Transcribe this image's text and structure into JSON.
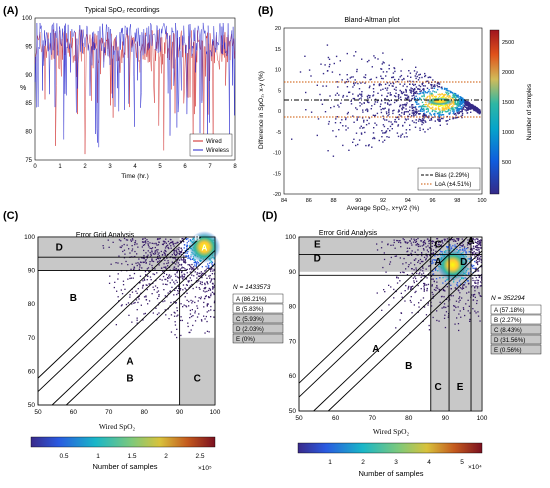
{
  "chart_data": [
    {
      "panel_label": "(A)",
      "type": "line",
      "title": "Typical SpO₂ recordings",
      "xlabel": "Time (hr.)",
      "ylabel": "%",
      "xlim": [
        0,
        8
      ],
      "ylim": [
        75,
        100
      ],
      "xticks": [
        "0",
        "1",
        "2",
        "3",
        "4",
        "5",
        "6",
        "7",
        "8"
      ],
      "yticks": [
        "75",
        "80",
        "85",
        "90",
        "95",
        "100"
      ],
      "legend_position": "bottom-right",
      "series": [
        {
          "name": "Wired",
          "color": "#cc2222"
        },
        {
          "name": "Wireless",
          "color": "#2222cc"
        }
      ]
    },
    {
      "panel_label": "(B)",
      "type": "scatter",
      "title": "Bland-Altman plot",
      "xlabel": "Average SpO₂, x+y/2 (%)",
      "ylabel": "Difference in SpO₂, x-y (%)",
      "xlim": [
        84,
        100
      ],
      "ylim": [
        -20,
        20
      ],
      "xticks": [
        "84",
        "86",
        "88",
        "90",
        "92",
        "94",
        "96",
        "98",
        "100"
      ],
      "yticks": [
        "-20",
        "-15",
        "-10",
        "-5",
        "0",
        "5",
        "10",
        "15",
        "20"
      ],
      "colorbar_label": "Number of samples",
      "colorbar_ticks": [
        "500",
        "1000",
        "1500",
        "2000",
        "2500"
      ],
      "legend_position": "bottom-right",
      "lines": [
        {
          "name": "Bias (2.29%)",
          "value": 2.29
        },
        {
          "name": "LoA (±4.51%)",
          "values": [
            -2.22,
            6.8
          ]
        }
      ]
    },
    {
      "panel_label": "(C)",
      "type": "scatter",
      "title": "Error Grid Analysis",
      "xlabel": "Wired SpO₂",
      "xlim": [
        50,
        100
      ],
      "ylim": [
        50,
        100
      ],
      "xticks": [
        "50",
        "60",
        "70",
        "80",
        "90",
        "100"
      ],
      "yticks": [
        "50",
        "60",
        "70",
        "80",
        "90",
        "100"
      ],
      "n_label": "N = 1433573",
      "zones": [
        "A (86.21%)",
        "B (5.83%)",
        "C (5.93%)",
        "D (2.03%)",
        "E (0%)"
      ],
      "zone_labels": [
        "A",
        "B",
        "C",
        "D"
      ],
      "colorbar_label": "Number of samples",
      "colorbar_ticks": [
        "0.5",
        "1",
        "1.5",
        "2",
        "2.5"
      ],
      "colorbar_multiplier": "×10⁵"
    },
    {
      "panel_label": "(D)",
      "type": "scatter",
      "title": "Error Grid Analysis",
      "xlabel": "Wired SpO₂",
      "xlim": [
        50,
        100
      ],
      "ylim": [
        50,
        100
      ],
      "xticks": [
        "50",
        "60",
        "70",
        "80",
        "90",
        "100"
      ],
      "yticks": [
        "50",
        "60",
        "70",
        "80",
        "90",
        "100"
      ],
      "n_label": "N = 352294",
      "zones": [
        "A (57.18%)",
        "B (2.27%)",
        "C (8.43%)",
        "D (31.56%)",
        "E (0.56%)"
      ],
      "zone_labels": [
        "A",
        "B",
        "C",
        "D",
        "E"
      ],
      "colorbar_label": "Number of samples",
      "colorbar_ticks": [
        "1",
        "2",
        "3",
        "4",
        "5"
      ],
      "colorbar_multiplier": "×10⁴"
    }
  ]
}
